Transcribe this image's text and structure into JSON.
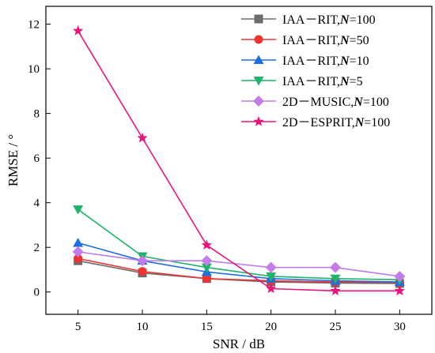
{
  "chart_data": {
    "type": "line",
    "xlabel": "SNR / dB",
    "ylabel": "RMSE / °",
    "x": [
      5,
      10,
      15,
      20,
      25,
      30
    ],
    "xlim": [
      2.5,
      32.5
    ],
    "ylim": [
      -1,
      12.8
    ],
    "xticks": [
      "5",
      "10",
      "15",
      "20",
      "25",
      "30"
    ],
    "yticks": [
      "0",
      "2",
      "4",
      "6",
      "8",
      "10",
      "12"
    ],
    "legend_position": "top-right",
    "series": [
      {
        "name_prefix": "IAA－RIT,",
        "name_var": "N",
        "name_suffix": "=100",
        "color": "#6b6b6b",
        "marker": "square",
        "values": [
          1.4,
          0.85,
          0.6,
          0.45,
          0.4,
          0.38
        ]
      },
      {
        "name_prefix": "IAA－RIT,",
        "name_var": "N",
        "name_suffix": "=50",
        "color": "#ee3333",
        "marker": "circle",
        "values": [
          1.5,
          0.92,
          0.6,
          0.5,
          0.45,
          0.42
        ]
      },
      {
        "name_prefix": "IAA－RIT,",
        "name_var": "N",
        "name_suffix": "=10",
        "color": "#1f6fe0",
        "marker": "triangle-up",
        "values": [
          2.2,
          1.4,
          0.9,
          0.6,
          0.5,
          0.45
        ]
      },
      {
        "name_prefix": "IAA－RIT,",
        "name_var": "N",
        "name_suffix": "=5",
        "color": "#1fb36b",
        "marker": "triangle-down",
        "values": [
          3.7,
          1.6,
          1.1,
          0.7,
          0.6,
          0.55
        ]
      },
      {
        "name_prefix": "2D－MUSIC,",
        "name_var": "N",
        "name_suffix": "=100",
        "color": "#c37ce8",
        "marker": "diamond",
        "values": [
          1.8,
          1.4,
          1.4,
          1.1,
          1.1,
          0.7
        ]
      },
      {
        "name_prefix": "2D－ESPRIT,",
        "name_var": "N",
        "name_suffix": "=100",
        "color": "#e8157b",
        "marker": "star",
        "values": [
          11.7,
          6.9,
          2.1,
          0.15,
          0.05,
          0.05
        ]
      }
    ]
  }
}
